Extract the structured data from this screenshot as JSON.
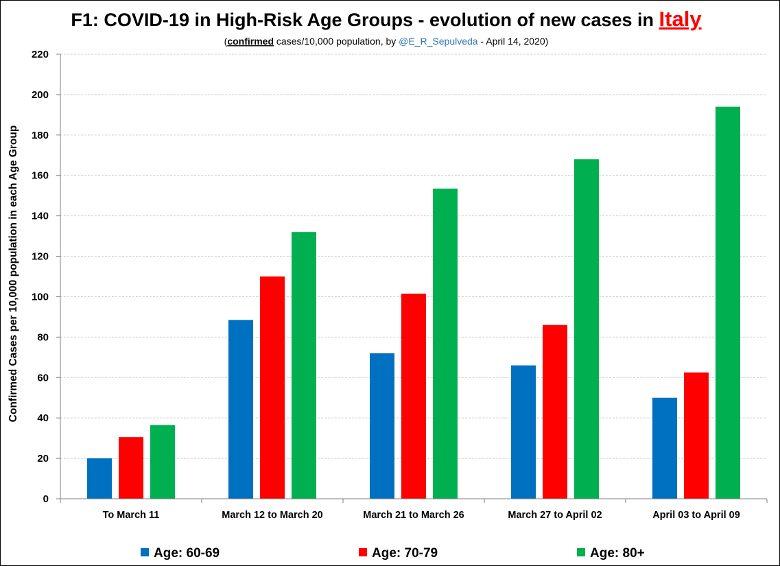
{
  "chart_data": {
    "type": "bar",
    "title_prefix": "F1: COVID-19 in High-Risk Age Groups - evolution of new cases in ",
    "title_country": "Italy",
    "subtitle": {
      "open": "(",
      "emphasis": "confirmed",
      "middle": " cases/10,000 population, by ",
      "handle": "@E_R_Sepulveda",
      "close": " - April 14, 2020)"
    },
    "ylabel": "Confirmed Cases per 10,000 population in each Age Group",
    "xlabel": "",
    "ylim": [
      0,
      220
    ],
    "yticks": [
      "0",
      "20",
      "40",
      "60",
      "80",
      "100",
      "120",
      "140",
      "160",
      "180",
      "200",
      "220"
    ],
    "grid": true,
    "legend_position": "bottom",
    "categories": [
      "To March 11",
      "March 12 to March 20",
      "March 21 to March 26",
      "March 27 to April 02",
      "April 03 to April 09"
    ],
    "series": [
      {
        "name": "Age: 60-69",
        "color": "#0070c0",
        "values": [
          20,
          88.5,
          72,
          66,
          50
        ]
      },
      {
        "name": "Age: 70-79",
        "color": "#ff0000",
        "values": [
          30.5,
          110,
          101.5,
          86,
          62.5
        ]
      },
      {
        "name": "Age: 80+",
        "color": "#00b050",
        "values": [
          36.5,
          132,
          153.5,
          168,
          194
        ]
      }
    ]
  }
}
